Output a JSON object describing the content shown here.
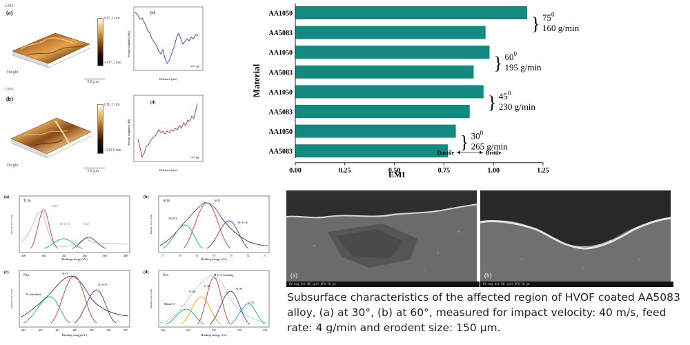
{
  "afm": {
    "panel_a": {
      "id_label": "1.002",
      "letter": "(a)",
      "max": "615.2 nm",
      "min": "-607.2 nm",
      "height_label": "Height",
      "scale": "3.0 µm"
    },
    "panel_b": {
      "id_label": "1.003",
      "letter": "(b)",
      "max": "610.1 nm",
      "min": "-599.6 nm",
      "height_label": "Height",
      "scale": "3.0 µm"
    },
    "plot_c": {
      "letter": "(c)",
      "ylabel": "Average roughness (Ra)",
      "xlabel": "Distance (µm)",
      "legend": "30°"
    },
    "plot_d": {
      "letter": "(d)",
      "ylabel": "Average roughness (Ra)",
      "xlabel": "Distance (µm)",
      "legend": "60°"
    }
  },
  "chart_data": {
    "type": "bar",
    "orientation": "horizontal",
    "categories": [
      "AA1050",
      "AA5083",
      "AA1050",
      "AA5083",
      "AA1050",
      "AA5083",
      "AA1050",
      "AA5083"
    ],
    "values": [
      1.17,
      0.96,
      0.98,
      0.9,
      0.95,
      0.88,
      0.81,
      0.77
    ],
    "xlabel": "EMI",
    "ylabel": "Material",
    "xlim": [
      0,
      1.25
    ],
    "xticks": [
      "0.00",
      "0.25",
      "0.50",
      "0.75",
      "1.00",
      "1.25"
    ],
    "bar_color": "#138a80",
    "groups": [
      {
        "angle": "75",
        "sup": "0",
        "rate": "160 g/min"
      },
      {
        "angle": "60",
        "sup": "0",
        "rate": "195 g/min"
      },
      {
        "angle": "45",
        "sup": "0",
        "rate": "230 g/min"
      },
      {
        "angle": "30",
        "sup": "0",
        "rate": "265 g/min"
      }
    ],
    "arrow_left": "Ductile",
    "arrow_right": "Brittle"
  },
  "xps": {
    "a": {
      "letter": "(a)",
      "title": "Ti 2p",
      "peaks": [
        "TiO2",
        "Ti-Al-N",
        "TiO2"
      ],
      "xlabel": "Binding energy (eV)",
      "ticks": [
        "458",
        "460",
        "462",
        "464",
        "466",
        "468"
      ]
    },
    "b": {
      "letter": "(b)",
      "title": "Al2p",
      "peaks": [
        "Al2O3",
        "Al-N",
        "Al-Ti-N"
      ],
      "xlabel": "Binding energy (eV)",
      "ticks": [
        "77",
        "76",
        "75",
        "74",
        "73",
        "72",
        "71"
      ]
    },
    "c": {
      "letter": "(c)",
      "title": "N1s",
      "peaks": [
        "N adsorbate",
        "N-O",
        "N-Ti-O"
      ],
      "xlabel": "Binding energy(eV)",
      "ticks": [
        "403",
        "402",
        "401",
        "400",
        "399",
        "398",
        "397"
      ]
    },
    "d": {
      "letter": "(d)",
      "title": "O1s",
      "peaks": [
        "O-Al",
        "H-O-C bonding",
        "Metal-O",
        "O-Ti",
        "O-Al",
        "O-Ti"
      ],
      "xlabel": "Binding energy (eV)",
      "ticks": [
        "536",
        "534",
        "532",
        "530",
        "528"
      ]
    },
    "ylabel": "Intensity (arb. units)"
  },
  "sem": {
    "label_a": "(a)",
    "label_b": "(b)",
    "caption": "Subsurface characteristics of the affected region of HVOF coated AA5083 alloy, (a) at 30°, (b) at 60°, measured for impact velocity: 40 m/s, feed rate: 4 g/min and erodent size: 150 µm.",
    "databar": "HV   mag   det   WD   spot   HFW   30 µm"
  }
}
